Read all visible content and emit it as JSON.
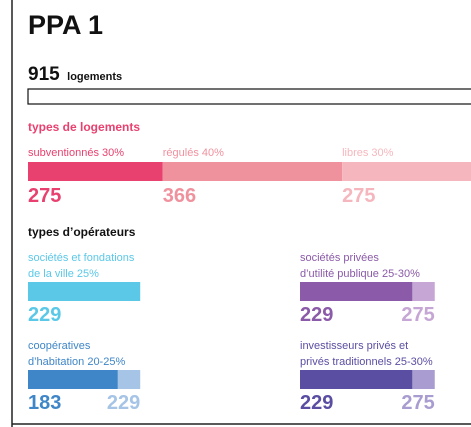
{
  "title": "PPA 1",
  "total": {
    "value": 915,
    "label": "logements"
  },
  "housing": {
    "heading": "types de logements",
    "segments": [
      {
        "label": "subventionnés 30%",
        "value": 275,
        "color": "#e8416f"
      },
      {
        "label": "régulés 40%",
        "value": 366,
        "color": "#f0919e"
      },
      {
        "label": "libres 30%",
        "value": 275,
        "color": "#f5b7bd"
      }
    ]
  },
  "operators": {
    "heading": "types d’opérateurs",
    "groups": [
      {
        "label_lines": [
          "sociétés et fondations",
          "de la ville 25%"
        ],
        "values": [
          229
        ],
        "colors": [
          "#5bc8e8"
        ]
      },
      {
        "label_lines": [
          "sociétés privées",
          "d’utilité publique 25-30%"
        ],
        "values": [
          229,
          275
        ],
        "colors": [
          "#8b5aa8",
          "#c5a6d4"
        ]
      },
      {
        "label_lines": [
          "coopératives",
          "d’habitation 20-25%"
        ],
        "values": [
          183,
          229
        ],
        "colors": [
          "#3f86c8",
          "#a5c4e6"
        ]
      },
      {
        "label_lines": [
          "investisseurs privés et",
          "privés traditionnels 25-30%"
        ],
        "values": [
          229,
          275
        ],
        "colors": [
          "#5a4ea3",
          "#a89cd0"
        ]
      }
    ]
  }
}
